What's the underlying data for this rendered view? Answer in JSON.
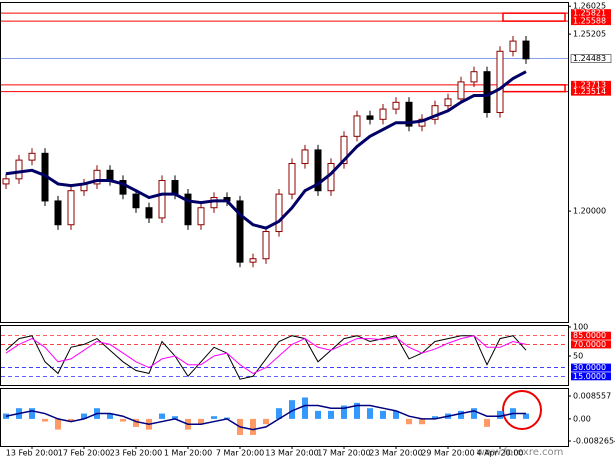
{
  "chart_data": [
    {
      "type": "candlestick",
      "watermark": "www.forexre.com",
      "categories": [
        null,
        null,
        "13 Feb 20:00",
        null,
        null,
        null,
        "17 Feb 20:00",
        null,
        null,
        null,
        "23 Feb 20:00",
        null,
        null,
        null,
        "1 Mar 20:00",
        null,
        null,
        null,
        "7 Mar 20:00",
        null,
        null,
        null,
        "13 Mar 20:00",
        null,
        null,
        null,
        "17 Mar 20:00",
        null,
        null,
        null,
        "23 Mar 20:00",
        null,
        null,
        null,
        "29 Mar 20:00",
        null,
        null,
        null,
        "4 Apr 20:00",
        null,
        null
      ],
      "open": [
        1.208,
        1.2095,
        1.215,
        1.217,
        1.203,
        1.196,
        1.206,
        1.208,
        1.212,
        1.209,
        1.205,
        1.201,
        1.198,
        1.209,
        1.205,
        1.196,
        1.201,
        1.204,
        1.203,
        1.185,
        1.186,
        1.194,
        1.205,
        1.214,
        1.218,
        1.206,
        1.214,
        1.222,
        1.228,
        1.227,
        1.23,
        1.232,
        1.225,
        1.227,
        1.231,
        1.233,
        1.238,
        1.241,
        1.229,
        1.247,
        1.25
      ],
      "high": [
        1.211,
        1.2165,
        1.2185,
        1.2185,
        1.2045,
        1.2075,
        1.2095,
        1.2135,
        1.2135,
        1.2105,
        1.2065,
        1.2025,
        1.2105,
        1.2105,
        1.2065,
        1.2025,
        1.2055,
        1.2055,
        1.2045,
        1.1875,
        1.1955,
        1.2065,
        1.2155,
        1.2195,
        1.2195,
        1.2155,
        1.2235,
        1.2295,
        1.2295,
        1.2315,
        1.2335,
        1.2335,
        1.2285,
        1.2325,
        1.2345,
        1.2395,
        1.2425,
        1.2425,
        1.2485,
        1.2515,
        1.2515
      ],
      "low": [
        1.2065,
        1.208,
        1.2135,
        1.2015,
        1.1945,
        1.1945,
        1.2045,
        1.2065,
        1.2075,
        1.2035,
        1.1995,
        1.1965,
        1.1965,
        1.2035,
        1.1945,
        1.1945,
        1.1995,
        1.2015,
        1.1835,
        1.1835,
        1.1845,
        1.1925,
        1.2035,
        1.2125,
        1.2045,
        1.2045,
        1.2125,
        1.2205,
        1.2255,
        1.2255,
        1.2285,
        1.2235,
        1.2235,
        1.2255,
        1.2295,
        1.2315,
        1.2365,
        1.2275,
        1.2275,
        1.2455,
        1.2433
      ],
      "close": [
        1.2095,
        1.215,
        1.217,
        1.203,
        1.196,
        1.206,
        1.208,
        1.212,
        1.209,
        1.205,
        1.201,
        1.198,
        1.209,
        1.205,
        1.196,
        1.201,
        1.204,
        1.203,
        1.185,
        1.186,
        1.194,
        1.205,
        1.214,
        1.218,
        1.206,
        1.214,
        1.222,
        1.228,
        1.227,
        1.23,
        1.232,
        1.225,
        1.227,
        1.231,
        1.233,
        1.238,
        1.241,
        1.229,
        1.247,
        1.25,
        1.2448
      ],
      "up_color": "#8b0000",
      "down_color": "#000000",
      "series": [
        {
          "color": "#000066",
          "values": [
            1.211,
            1.2115,
            1.212,
            1.2105,
            1.208,
            1.2075,
            1.208,
            1.209,
            1.209,
            1.208,
            1.206,
            1.204,
            1.205,
            1.205,
            1.203,
            1.2025,
            1.203,
            1.203,
            1.199,
            1.196,
            1.195,
            1.197,
            1.201,
            1.206,
            1.208,
            1.211,
            1.215,
            1.219,
            1.222,
            1.224,
            1.226,
            1.226,
            1.2265,
            1.228,
            1.2295,
            1.232,
            1.234,
            1.234,
            1.236,
            1.239,
            1.241
          ]
        }
      ],
      "ylim": [
        1.1674,
        1.2612
      ],
      "yticks": [
        1.26025,
        1.25205,
        {
          "value": 1.2,
          "label": "1.20000"
        }
      ],
      "zones": [
        {
          "top": 1.25821,
          "bottom": 1.25588
        },
        {
          "top": 1.23713,
          "bottom": 1.23514
        }
      ],
      "zone_color": "#ff0000",
      "current_price": 1.24483,
      "current_color": "#4169e1"
    },
    {
      "type": "line",
      "series": [
        {
          "color": "#000000",
          "values": [
            60,
            80,
            85,
            40,
            20,
            65,
            70,
            80,
            60,
            40,
            25,
            20,
            75,
            50,
            15,
            40,
            65,
            55,
            10,
            15,
            45,
            75,
            85,
            80,
            40,
            60,
            80,
            85,
            75,
            80,
            85,
            45,
            55,
            75,
            80,
            85,
            85,
            35,
            80,
            85,
            60
          ]
        },
        {
          "color": "#ff00ff",
          "values": [
            55,
            70,
            80,
            65,
            40,
            45,
            60,
            75,
            70,
            55,
            40,
            30,
            45,
            50,
            35,
            35,
            50,
            55,
            35,
            20,
            30,
            50,
            70,
            80,
            65,
            60,
            70,
            80,
            80,
            78,
            82,
            65,
            55,
            62,
            72,
            80,
            85,
            65,
            65,
            75,
            70
          ]
        }
      ],
      "ylim": [
        0,
        100
      ],
      "yticks": [
        100,
        50
      ],
      "levels": [
        {
          "value": 85,
          "label": "85.0000",
          "color": "#ff0000"
        },
        {
          "value": 70,
          "label": "70.0000",
          "color": "#ff0000"
        },
        {
          "value": 30,
          "label": "30.0000",
          "color": "#0000ff"
        },
        {
          "value": 15,
          "label": "15.0000",
          "color": "#0000ff"
        }
      ]
    },
    {
      "type": "bar",
      "values": [
        0.002,
        0.004,
        0.004,
        -0.001,
        -0.004,
        -0.001,
        0.002,
        0.004,
        0.002,
        -0.001,
        -0.003,
        -0.004,
        0.002,
        0.001,
        -0.004,
        -0.002,
        0.001,
        0.0005,
        -0.006,
        -0.006,
        -0.002,
        0.004,
        0.007,
        0.008,
        0.003,
        0.003,
        0.005,
        0.006,
        0.004,
        0.003,
        0.003,
        -0.002,
        -0.002,
        0.001,
        0.002,
        0.003,
        0.004,
        -0.003,
        0.003,
        0.004,
        0.002
      ],
      "pos_color": "#3399ff",
      "neg_color": "#ff9966",
      "series": [
        {
          "color": "#000080",
          "values": [
            0.001,
            0.002,
            0.003,
            0.002,
            0.0,
            -0.001,
            0.0,
            0.002,
            0.002,
            0.001,
            -0.001,
            -0.002,
            -0.001,
            0.0,
            -0.002,
            -0.002,
            -0.001,
            0.0,
            -0.003,
            -0.004,
            -0.003,
            0.0,
            0.003,
            0.005,
            0.005,
            0.004,
            0.004,
            0.005,
            0.005,
            0.004,
            0.003,
            0.001,
            0.0,
            0.0,
            0.001,
            0.002,
            0.003,
            0.001,
            0.001,
            0.002,
            0.002
          ]
        }
      ],
      "ylim": [
        -0.0082654,
        0.008557
      ],
      "yticks": [
        0.008557,
        {
          "value": 0,
          "label": "0.00"
        },
        -0.0082654
      ]
    }
  ]
}
